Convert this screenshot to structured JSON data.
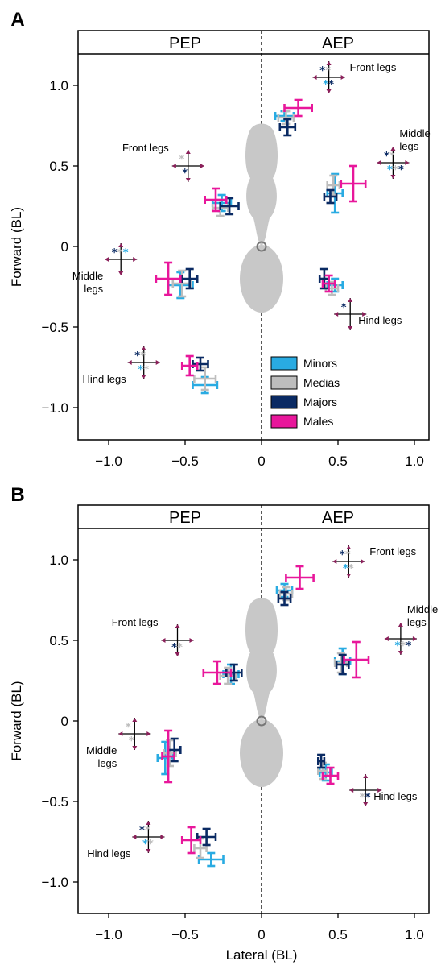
{
  "colors": {
    "Minors": "#29abe2",
    "Medias": "#bdbdbd",
    "Majors": "#0a2a63",
    "Males": "#e8179b",
    "body": "#c8c8c8",
    "arrow": "#8b1f5a"
  },
  "chart_data": [
    {
      "type": "scatter",
      "panel_label": "A",
      "header": {
        "left": "PEP",
        "right": "AEP"
      },
      "xlabel": "",
      "ylabel": "Forward (BL)",
      "xlim": [
        -1.2,
        1.2
      ],
      "ylim": [
        -1.2,
        1.2
      ],
      "xticks": [
        -1.0,
        -0.5,
        0,
        0.5,
        1.0
      ],
      "xtick_labels": [
        "−1.0",
        "−0.5",
        "0",
        "0.5",
        "1.0"
      ],
      "yticks": [
        1.0,
        0.5,
        0,
        -0.5,
        -1.0
      ],
      "ytick_labels": [
        "1.0",
        "0.5",
        "0",
        "−0.5",
        "−1.0"
      ],
      "legend": {
        "placement": "bottom-center",
        "entries": [
          "Minors",
          "Medias",
          "Majors",
          "Males"
        ]
      },
      "series": [
        {
          "name": "Minors",
          "points": [
            {
              "x": 0.15,
              "y": 0.81,
              "xerr": 0.06,
              "yerr": 0.03
            },
            {
              "x": 0.48,
              "y": 0.33,
              "xerr": 0.05,
              "yerr": 0.12
            },
            {
              "x": -0.26,
              "y": 0.27,
              "xerr": 0.06,
              "yerr": 0.05
            },
            {
              "x": -0.53,
              "y": -0.24,
              "xerr": 0.08,
              "yerr": 0.08
            },
            {
              "x": 0.48,
              "y": -0.24,
              "xerr": 0.05,
              "yerr": 0.04
            },
            {
              "x": -0.37,
              "y": -0.86,
              "xerr": 0.08,
              "yerr": 0.05
            }
          ]
        },
        {
          "name": "Medias",
          "points": [
            {
              "x": 0.16,
              "y": 0.8,
              "xerr": 0.05,
              "yerr": 0.04
            },
            {
              "x": 0.47,
              "y": 0.38,
              "xerr": 0.04,
              "yerr": 0.06
            },
            {
              "x": -0.27,
              "y": 0.24,
              "xerr": 0.05,
              "yerr": 0.05
            },
            {
              "x": -0.52,
              "y": -0.23,
              "xerr": 0.06,
              "yerr": 0.08
            },
            {
              "x": 0.46,
              "y": -0.26,
              "xerr": 0.04,
              "yerr": 0.04
            },
            {
              "x": -0.37,
              "y": -0.82,
              "xerr": 0.07,
              "yerr": 0.07
            }
          ]
        },
        {
          "name": "Majors",
          "points": [
            {
              "x": 0.17,
              "y": 0.74,
              "xerr": 0.05,
              "yerr": 0.05
            },
            {
              "x": 0.45,
              "y": 0.31,
              "xerr": 0.04,
              "yerr": 0.04
            },
            {
              "x": -0.21,
              "y": 0.25,
              "xerr": 0.06,
              "yerr": 0.05
            },
            {
              "x": -0.47,
              "y": -0.2,
              "xerr": 0.05,
              "yerr": 0.06
            },
            {
              "x": 0.41,
              "y": -0.2,
              "xerr": 0.03,
              "yerr": 0.06
            },
            {
              "x": -0.4,
              "y": -0.73,
              "xerr": 0.05,
              "yerr": 0.04
            }
          ]
        },
        {
          "name": "Males",
          "points": [
            {
              "x": 0.24,
              "y": 0.86,
              "xerr": 0.09,
              "yerr": 0.05
            },
            {
              "x": 0.6,
              "y": 0.39,
              "xerr": 0.08,
              "yerr": 0.11
            },
            {
              "x": -0.3,
              "y": 0.29,
              "xerr": 0.07,
              "yerr": 0.07
            },
            {
              "x": -0.61,
              "y": -0.2,
              "xerr": 0.08,
              "yerr": 0.1
            },
            {
              "x": 0.44,
              "y": -0.23,
              "xerr": 0.04,
              "yerr": 0.05
            },
            {
              "x": -0.47,
              "y": -0.74,
              "xerr": 0.05,
              "yerr": 0.06
            }
          ]
        }
      ],
      "annotations": [
        {
          "label": "Front legs",
          "cx": 0.44,
          "cy": 1.05,
          "stars_top": [
            "Majors",
            "Medias"
          ],
          "stars_bottom": [
            "Minors",
            "Majors"
          ],
          "label_side": "right"
        },
        {
          "label": "Middle\nlegs",
          "cx": 0.86,
          "cy": 0.52,
          "stars_top": [
            "Majors",
            "Medias"
          ],
          "stars_bottom": [
            "Minors",
            "Medias",
            "Majors"
          ],
          "label_side": "right-top"
        },
        {
          "label": "Front legs",
          "cx": -0.48,
          "cy": 0.5,
          "stars_top": [
            "Medias"
          ],
          "stars_bottom": [
            "Majors"
          ],
          "label_side": "left"
        },
        {
          "label": "Middle\nlegs",
          "cx": -0.92,
          "cy": -0.08,
          "stars_top": [
            "Majors",
            "Medias",
            "Minors"
          ],
          "stars_bottom": [],
          "label_side": "left-bottom"
        },
        {
          "label": "Hind legs",
          "cx": 0.58,
          "cy": -0.42,
          "stars_top": [
            "Majors"
          ],
          "stars_bottom": [],
          "label_side": "right-bottom"
        },
        {
          "label": "Hind legs",
          "cx": -0.77,
          "cy": -0.72,
          "stars_top": [
            "Majors",
            "Medias"
          ],
          "stars_bottom": [
            "Minors",
            "Medias"
          ],
          "label_side": "left-bottom"
        }
      ]
    },
    {
      "type": "scatter",
      "panel_label": "B",
      "header": {
        "left": "PEP",
        "right": "AEP"
      },
      "xlabel": "Lateral (BL)",
      "ylabel": "Forward (BL)",
      "xlim": [
        -1.2,
        1.2
      ],
      "ylim": [
        -1.2,
        1.2
      ],
      "xticks": [
        -1.0,
        -0.5,
        0,
        0.5,
        1.0
      ],
      "xtick_labels": [
        "−1.0",
        "−0.5",
        "0",
        "0.5",
        "1.0"
      ],
      "yticks": [
        1.0,
        0.5,
        0,
        -0.5,
        -1.0
      ],
      "ytick_labels": [
        "1.0",
        "0.5",
        "0",
        "−0.5",
        "−1.0"
      ],
      "legend": {
        "placement": "none",
        "entries": []
      },
      "series": [
        {
          "name": "Minors",
          "points": [
            {
              "x": 0.15,
              "y": 0.81,
              "xerr": 0.05,
              "yerr": 0.04
            },
            {
              "x": 0.53,
              "y": 0.37,
              "xerr": 0.05,
              "yerr": 0.08
            },
            {
              "x": -0.2,
              "y": 0.29,
              "xerr": 0.05,
              "yerr": 0.06
            },
            {
              "x": -0.63,
              "y": -0.23,
              "xerr": 0.05,
              "yerr": 0.1
            },
            {
              "x": 0.42,
              "y": -0.32,
              "xerr": 0.04,
              "yerr": 0.05
            },
            {
              "x": -0.33,
              "y": -0.86,
              "xerr": 0.08,
              "yerr": 0.04
            }
          ]
        },
        {
          "name": "Medias",
          "points": [
            {
              "x": 0.16,
              "y": 0.79,
              "xerr": 0.04,
              "yerr": 0.04
            },
            {
              "x": 0.52,
              "y": 0.36,
              "xerr": 0.04,
              "yerr": 0.06
            },
            {
              "x": -0.22,
              "y": 0.28,
              "xerr": 0.05,
              "yerr": 0.05
            },
            {
              "x": -0.6,
              "y": -0.2,
              "xerr": 0.04,
              "yerr": 0.08
            },
            {
              "x": 0.4,
              "y": -0.31,
              "xerr": 0.03,
              "yerr": 0.05
            },
            {
              "x": -0.4,
              "y": -0.79,
              "xerr": 0.04,
              "yerr": 0.06
            }
          ]
        },
        {
          "name": "Majors",
          "points": [
            {
              "x": 0.15,
              "y": 0.76,
              "xerr": 0.04,
              "yerr": 0.04
            },
            {
              "x": 0.53,
              "y": 0.35,
              "xerr": 0.04,
              "yerr": 0.06
            },
            {
              "x": -0.18,
              "y": 0.3,
              "xerr": 0.05,
              "yerr": 0.05
            },
            {
              "x": -0.57,
              "y": -0.18,
              "xerr": 0.04,
              "yerr": 0.07
            },
            {
              "x": 0.39,
              "y": -0.25,
              "xerr": 0.02,
              "yerr": 0.04
            },
            {
              "x": -0.36,
              "y": -0.72,
              "xerr": 0.06,
              "yerr": 0.05
            }
          ]
        },
        {
          "name": "Males",
          "points": [
            {
              "x": 0.25,
              "y": 0.89,
              "xerr": 0.09,
              "yerr": 0.07
            },
            {
              "x": 0.62,
              "y": 0.38,
              "xerr": 0.08,
              "yerr": 0.11
            },
            {
              "x": -0.29,
              "y": 0.3,
              "xerr": 0.09,
              "yerr": 0.07
            },
            {
              "x": -0.61,
              "y": -0.22,
              "xerr": 0.04,
              "yerr": 0.16
            },
            {
              "x": 0.45,
              "y": -0.34,
              "xerr": 0.05,
              "yerr": 0.05
            },
            {
              "x": -0.46,
              "y": -0.74,
              "xerr": 0.06,
              "yerr": 0.08
            }
          ]
        }
      ],
      "annotations": [
        {
          "label": "Front legs",
          "cx": 0.57,
          "cy": 0.99,
          "stars_top": [
            "Majors",
            "Medias"
          ],
          "stars_bottom": [
            "Minors",
            "Medias"
          ],
          "label_side": "right"
        },
        {
          "label": "Middle\nlegs",
          "cx": 0.91,
          "cy": 0.51,
          "stars_top": [],
          "stars_bottom": [
            "Minors",
            "Medias",
            "Majors"
          ],
          "label_side": "right-top"
        },
        {
          "label": "Front legs",
          "cx": -0.55,
          "cy": 0.5,
          "stars_top": [],
          "stars_bottom": [
            "Majors",
            "Medias"
          ],
          "label_side": "left"
        },
        {
          "label": "Middle\nlegs",
          "cx": -0.83,
          "cy": -0.08,
          "stars_top": [
            "Medias"
          ],
          "stars_bottom": [
            "Medias"
          ],
          "label_side": "left-bottom"
        },
        {
          "label": "Hind legs",
          "cx": 0.68,
          "cy": -0.43,
          "stars_top": [],
          "stars_bottom": [
            "Medias",
            "Majors"
          ],
          "label_side": "right-bottom"
        },
        {
          "label": "Hind legs",
          "cx": -0.74,
          "cy": -0.72,
          "stars_top": [
            "Majors",
            "Medias"
          ],
          "stars_bottom": [
            "Minors",
            "Medias"
          ],
          "label_side": "left-bottom"
        }
      ]
    }
  ]
}
